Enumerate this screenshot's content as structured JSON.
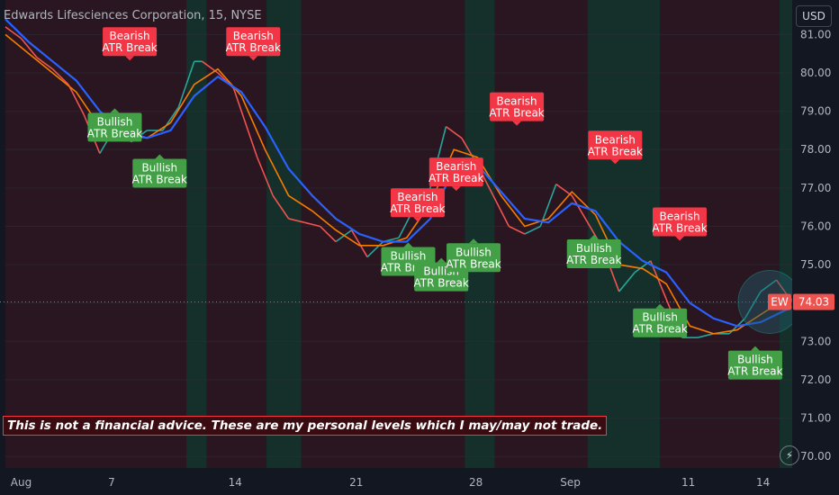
{
  "header": {
    "title": "Edwards Lifesciences Corporation, 15, NYSE",
    "currency_button": "USD"
  },
  "disclaimer": "This is not a financial advice. These are my personal levels which I may/may not trade.",
  "icons": {
    "quick_trade": "lightning-icon"
  },
  "colors": {
    "background": "#131722",
    "up": "#26a69a",
    "down": "#ef5350",
    "ema_fast": "#f57c00",
    "ema_slow": "#2962ff",
    "bearish_label": "#f23645",
    "bullish_label": "#43a047",
    "session_green": "#15302a",
    "session_red": "#2a1620"
  },
  "chart_data": {
    "type": "line",
    "symbol": "EW",
    "interval": "15",
    "ylim": [
      69.7,
      81.9
    ],
    "y_ticks": [
      "81.00",
      "80.00",
      "79.00",
      "78.00",
      "77.00",
      "76.00",
      "75.00",
      "74.00",
      "73.00",
      "72.00",
      "71.00",
      "70.00"
    ],
    "x_ticks": [
      "Aug",
      "7",
      "14",
      "21",
      "28",
      "Sep",
      "11",
      "14"
    ],
    "last_price": {
      "value": 74.03,
      "label": "74.03",
      "symbol_tag": "EW"
    },
    "series": [
      {
        "role": "price",
        "x": [
          0,
          2,
          4,
          6,
          8,
          10,
          12,
          14,
          16,
          18,
          20,
          22,
          24,
          25,
          27,
          29,
          32,
          34,
          36,
          38,
          40,
          42,
          44,
          46,
          48,
          50,
          52,
          54,
          56,
          58,
          60,
          62,
          64,
          66,
          68,
          70,
          72,
          74,
          76,
          78,
          80,
          82,
          84,
          86,
          88,
          90,
          92,
          94,
          96,
          98,
          100
        ],
        "values": [
          81.2,
          80.9,
          80.4,
          80.1,
          79.7,
          78.9,
          77.9,
          78.6,
          78.2,
          78.5,
          78.5,
          79.1,
          80.3,
          80.3,
          80.0,
          79.6,
          77.8,
          76.8,
          76.2,
          76.1,
          76.0,
          75.6,
          75.9,
          75.2,
          75.6,
          75.7,
          76.5,
          77.0,
          78.6,
          78.3,
          77.6,
          76.8,
          76.0,
          75.8,
          76.0,
          77.1,
          76.8,
          76.1,
          75.4,
          74.3,
          74.8,
          75.1,
          74.1,
          73.1,
          73.1,
          73.2,
          73.2,
          73.6,
          74.3,
          74.6,
          74.03
        ]
      },
      {
        "role": "ema_fast",
        "x": [
          0,
          3,
          6,
          9,
          12,
          15,
          18,
          21,
          24,
          27,
          30,
          33,
          36,
          39,
          42,
          45,
          48,
          51,
          54,
          57,
          60,
          63,
          66,
          69,
          72,
          75,
          78,
          81,
          84,
          87,
          90,
          93,
          96,
          99,
          100
        ],
        "values": [
          81.0,
          80.5,
          80.0,
          79.5,
          78.6,
          78.4,
          78.3,
          78.7,
          79.7,
          80.1,
          79.4,
          78.0,
          76.8,
          76.4,
          75.9,
          75.5,
          75.5,
          75.7,
          76.6,
          78.0,
          77.8,
          76.8,
          76.0,
          76.2,
          76.9,
          76.3,
          75.0,
          74.9,
          74.5,
          73.4,
          73.2,
          73.3,
          73.7,
          74.1,
          74.1
        ]
      },
      {
        "role": "ema_slow",
        "x": [
          0,
          3,
          6,
          9,
          12,
          15,
          18,
          21,
          24,
          27,
          30,
          33,
          36,
          39,
          42,
          45,
          48,
          51,
          54,
          57,
          60,
          63,
          66,
          69,
          72,
          75,
          78,
          81,
          84,
          87,
          90,
          93,
          96,
          99,
          100
        ],
        "values": [
          81.4,
          80.8,
          80.3,
          79.8,
          79.0,
          78.5,
          78.3,
          78.5,
          79.4,
          79.9,
          79.5,
          78.6,
          77.5,
          76.8,
          76.2,
          75.8,
          75.6,
          75.6,
          76.2,
          77.5,
          77.6,
          76.9,
          76.2,
          76.1,
          76.6,
          76.4,
          75.6,
          75.1,
          74.8,
          74.0,
          73.6,
          73.4,
          73.5,
          73.8,
          73.9
        ]
      }
    ],
    "annotations": [
      {
        "label": "Bearish ATR Break",
        "type": "bearish",
        "x": 15.8,
        "y": 80.3
      },
      {
        "label": "Bearish ATR Break",
        "type": "bearish",
        "x": 31.5,
        "y": 80.3
      },
      {
        "label": "Bearish ATR Break",
        "type": "bearish",
        "x": 52.4,
        "y": 76.1
      },
      {
        "label": "Bearish ATR Break",
        "type": "bearish",
        "x": 57.3,
        "y": 76.9
      },
      {
        "label": "Bearish ATR Break",
        "type": "bearish",
        "x": 65.0,
        "y": 78.6
      },
      {
        "label": "Bearish ATR Break",
        "type": "bearish",
        "x": 77.5,
        "y": 77.6
      },
      {
        "label": "Bearish ATR Break",
        "type": "bearish",
        "x": 85.7,
        "y": 75.6
      },
      {
        "label": "Bullish ATR Break",
        "type": "bullish",
        "x": 13.9,
        "y": 79.1
      },
      {
        "label": "Bullish ATR Break",
        "type": "bullish",
        "x": 19.6,
        "y": 77.9
      },
      {
        "label": "Bullish ATR Break",
        "type": "bullish",
        "x": 51.2,
        "y": 75.6
      },
      {
        "label": "Bullish ATR Break",
        "type": "bullish",
        "x": 55.4,
        "y": 75.2
      },
      {
        "label": "Bullish ATR Break",
        "type": "bullish",
        "x": 59.5,
        "y": 75.7
      },
      {
        "label": "Bullish ATR Break",
        "type": "bullish",
        "x": 74.8,
        "y": 75.8
      },
      {
        "label": "Bullish ATR Break",
        "type": "bullish",
        "x": 83.2,
        "y": 74.0
      },
      {
        "label": "Bullish ATR Break",
        "type": "bullish",
        "x": 95.3,
        "y": 72.9
      }
    ],
    "sessions": [
      {
        "type": "red",
        "x0": 0,
        "x1": 23.0
      },
      {
        "type": "green",
        "x0": 23.0,
        "x1": 25.6
      },
      {
        "type": "red",
        "x0": 25.6,
        "x1": 33.2
      },
      {
        "type": "green",
        "x0": 33.2,
        "x1": 37.6
      },
      {
        "type": "red",
        "x0": 37.6,
        "x1": 58.4
      },
      {
        "type": "green",
        "x0": 58.4,
        "x1": 62.2
      },
      {
        "type": "red",
        "x0": 62.2,
        "x1": 74.0
      },
      {
        "type": "green",
        "x0": 74.0,
        "x1": 83.2
      },
      {
        "type": "red",
        "x0": 83.2,
        "x1": 98.4
      },
      {
        "type": "green",
        "x0": 98.4,
        "x1": 100
      }
    ],
    "grid": true
  }
}
